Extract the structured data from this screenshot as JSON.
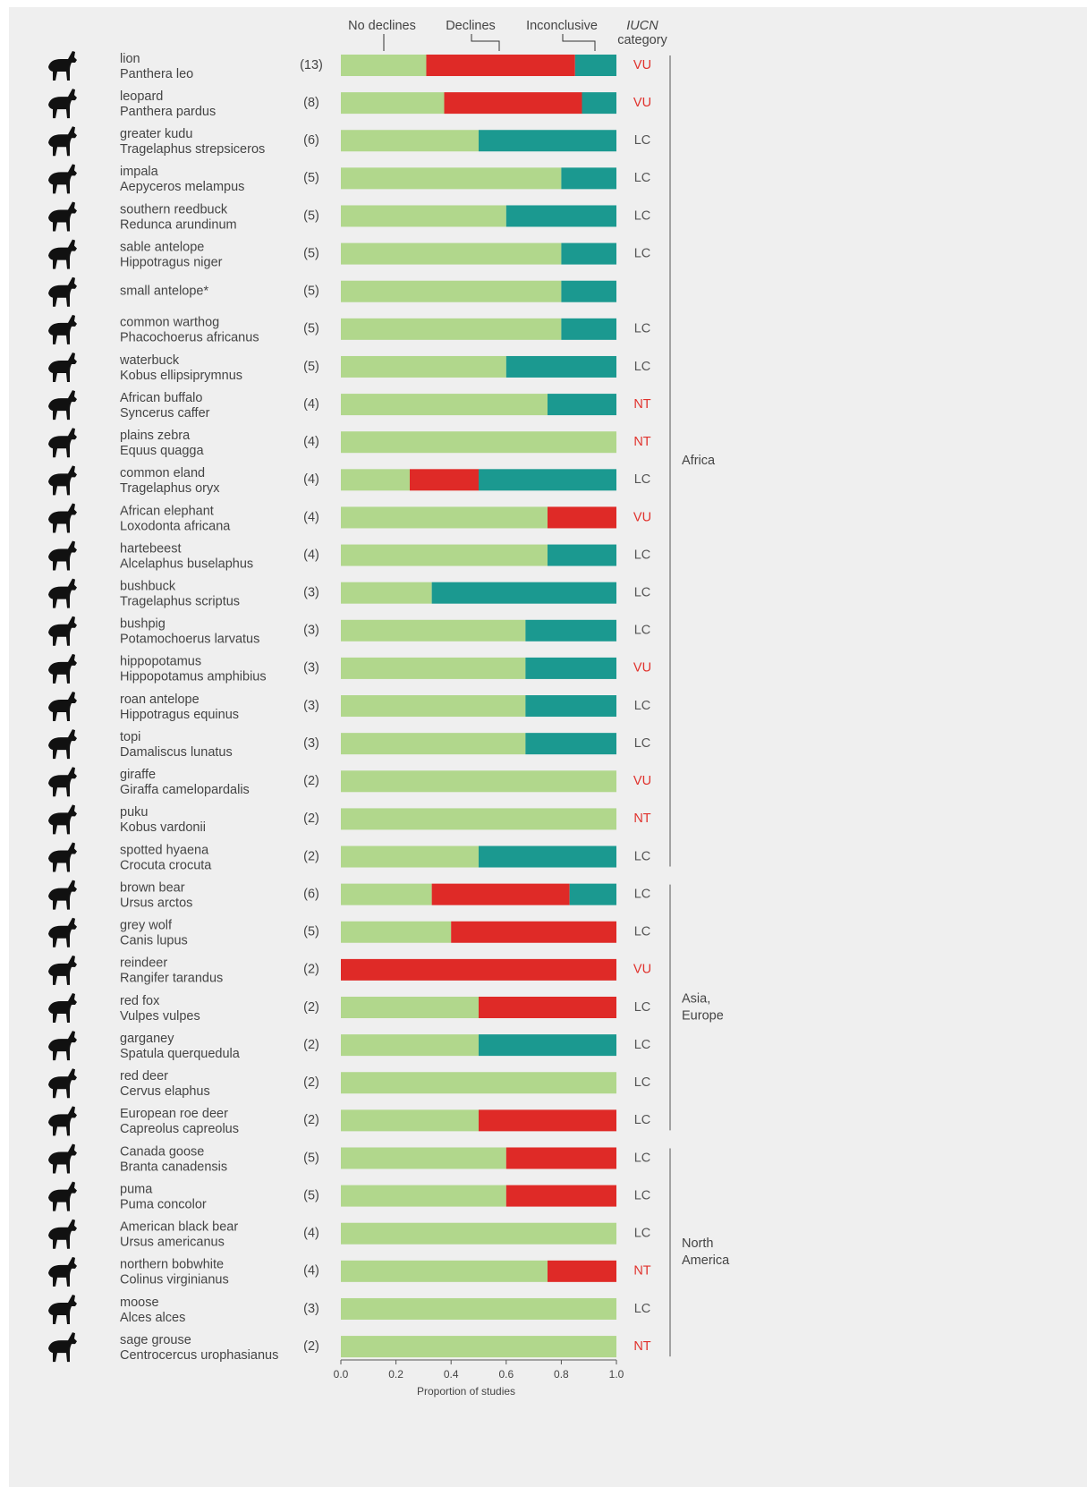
{
  "chart_data": {
    "type": "stacked-barh",
    "xlabel": "Proportion of studies",
    "xlim": [
      0,
      1
    ],
    "xticks": [
      {
        "value": 0,
        "label": "0.0"
      },
      0.2,
      0.4,
      0.6,
      0.8,
      {
        "value": 1,
        "label": "1.0"
      }
    ],
    "iucn_header": [
      "IUCN",
      "category"
    ],
    "iucn_colors": {
      "VU": "#e0312c",
      "NT": "#e0312c",
      "LC": "#555555"
    },
    "series": [
      {
        "name": "No declines",
        "color": "#b1d78c"
      },
      {
        "name": "Declines",
        "color": "#df2a27"
      },
      {
        "name": "Inconclusive",
        "color": "#1b9990"
      }
    ],
    "groups": [
      {
        "label": [
          "Africa"
        ],
        "rows": [
          {
            "common": "lion",
            "scientific": "Panthera leo",
            "studies": "(13)",
            "iucn": "VU",
            "values": [
              0.31,
              0.54,
              0.15
            ]
          },
          {
            "common": "leopard",
            "scientific": "Panthera pardus",
            "studies": "(8)",
            "iucn": "VU",
            "values": [
              0.375,
              0.5,
              0.125
            ]
          },
          {
            "common": "greater kudu",
            "scientific": "Tragelaphus strepsiceros",
            "studies": "(6)",
            "iucn": "LC",
            "values": [
              0.5,
              0,
              0.5
            ]
          },
          {
            "common": "impala",
            "scientific": "Aepyceros melampus",
            "studies": "(5)",
            "iucn": "LC",
            "values": [
              0.8,
              0,
              0.2
            ]
          },
          {
            "common": "southern reedbuck",
            "scientific": "Redunca arundinum",
            "studies": "(5)",
            "iucn": "LC",
            "values": [
              0.6,
              0,
              0.4
            ]
          },
          {
            "common": "sable antelope",
            "scientific": "Hippotragus niger",
            "studies": "(5)",
            "iucn": "LC",
            "values": [
              0.8,
              0,
              0.2
            ]
          },
          {
            "common": "small antelope*",
            "scientific": null,
            "studies": "(5)",
            "iucn": null,
            "values": [
              0.8,
              0,
              0.2
            ]
          },
          {
            "common": "common warthog",
            "scientific": "Phacochoerus africanus",
            "studies": "(5)",
            "iucn": "LC",
            "values": [
              0.8,
              0,
              0.2
            ]
          },
          {
            "common": "waterbuck",
            "scientific": "Kobus ellipsiprymnus",
            "studies": "(5)",
            "iucn": "LC",
            "values": [
              0.6,
              0,
              0.4
            ]
          },
          {
            "common": "African buffalo",
            "scientific": "Syncerus caffer",
            "studies": "(4)",
            "iucn": "NT",
            "values": [
              0.75,
              0,
              0.25
            ]
          },
          {
            "common": "plains zebra",
            "scientific": "Equus quagga",
            "studies": "(4)",
            "iucn": "NT",
            "values": [
              1,
              0,
              0
            ]
          },
          {
            "common": "common eland",
            "scientific": "Tragelaphus oryx",
            "studies": "(4)",
            "iucn": "LC",
            "values": [
              0.25,
              0.25,
              0.5
            ]
          },
          {
            "common": "African elephant",
            "scientific": "Loxodonta africana",
            "studies": "(4)",
            "iucn": "VU",
            "values": [
              0.75,
              0.25,
              0
            ]
          },
          {
            "common": "hartebeest",
            "scientific": "Alcelaphus buselaphus",
            "studies": "(4)",
            "iucn": "LC",
            "values": [
              0.75,
              0,
              0.25
            ]
          },
          {
            "common": "bushbuck",
            "scientific": "Tragelaphus scriptus",
            "studies": "(3)",
            "iucn": "LC",
            "values": [
              0.33,
              0,
              0.67
            ]
          },
          {
            "common": "bushpig",
            "scientific": "Potamochoerus larvatus",
            "studies": "(3)",
            "iucn": "LC",
            "values": [
              0.67,
              0,
              0.33
            ]
          },
          {
            "common": "hippopotamus",
            "scientific": "Hippopotamus amphibius",
            "studies": "(3)",
            "iucn": "VU",
            "values": [
              0.67,
              0,
              0.33
            ]
          },
          {
            "common": "roan antelope",
            "scientific": "Hippotragus equinus",
            "studies": "(3)",
            "iucn": "LC",
            "values": [
              0.67,
              0,
              0.33
            ]
          },
          {
            "common": "topi",
            "scientific": "Damaliscus lunatus",
            "studies": "(3)",
            "iucn": "LC",
            "values": [
              0.67,
              0,
              0.33
            ]
          },
          {
            "common": "giraffe",
            "scientific": "Giraffa camelopardalis",
            "studies": "(2)",
            "iucn": "VU",
            "values": [
              1,
              0,
              0
            ]
          },
          {
            "common": "puku",
            "scientific": "Kobus vardonii",
            "studies": "(2)",
            "iucn": "NT",
            "values": [
              1,
              0,
              0
            ]
          },
          {
            "common": "spotted hyaena",
            "scientific": "Crocuta crocuta",
            "studies": "(2)",
            "iucn": "LC",
            "values": [
              0.5,
              0,
              0.5
            ]
          }
        ]
      },
      {
        "label": [
          "Asia,",
          "Europe"
        ],
        "rows": [
          {
            "common": "brown bear",
            "scientific": "Ursus arctos",
            "studies": "(6)",
            "iucn": "LC",
            "values": [
              0.33,
              0.5,
              0.17
            ]
          },
          {
            "common": "grey wolf",
            "scientific": "Canis lupus",
            "studies": "(5)",
            "iucn": "LC",
            "values": [
              0.4,
              0.6,
              0
            ]
          },
          {
            "common": "reindeer",
            "scientific": "Rangifer tarandus",
            "studies": "(2)",
            "iucn": "VU",
            "values": [
              0,
              1,
              0
            ]
          },
          {
            "common": "red fox",
            "scientific": "Vulpes vulpes",
            "studies": "(2)",
            "iucn": "LC",
            "values": [
              0.5,
              0.5,
              0
            ]
          },
          {
            "common": "garganey",
            "scientific": "Spatula querquedula",
            "studies": "(2)",
            "iucn": "LC",
            "values": [
              0.5,
              0,
              0.5
            ]
          },
          {
            "common": "red deer",
            "scientific": "Cervus elaphus",
            "studies": "(2)",
            "iucn": "LC",
            "values": [
              1,
              0,
              0
            ]
          },
          {
            "common": "European roe deer",
            "scientific": "Capreolus capreolus",
            "studies": "(2)",
            "iucn": "LC",
            "values": [
              0.5,
              0.5,
              0
            ]
          }
        ]
      },
      {
        "label": [
          "North",
          "America"
        ],
        "rows": [
          {
            "common": "Canada goose",
            "scientific": "Branta canadensis",
            "studies": "(5)",
            "iucn": "LC",
            "values": [
              0.6,
              0.4,
              0
            ]
          },
          {
            "common": "puma",
            "scientific": "Puma concolor",
            "studies": "(5)",
            "iucn": "LC",
            "values": [
              0.6,
              0.4,
              0
            ]
          },
          {
            "common": "American black bear",
            "scientific": "Ursus americanus",
            "studies": "(4)",
            "iucn": "LC",
            "values": [
              1,
              0,
              0
            ]
          },
          {
            "common": "northern bobwhite",
            "scientific": "Colinus virginianus",
            "studies": "(4)",
            "iucn": "NT",
            "values": [
              0.75,
              0.25,
              0
            ]
          },
          {
            "common": "moose",
            "scientific": "Alces alces",
            "studies": "(3)",
            "iucn": "LC",
            "values": [
              1,
              0,
              0
            ]
          },
          {
            "common": "sage grouse",
            "scientific": "Centrocercus urophasianus",
            "studies": "(2)",
            "iucn": "NT",
            "values": [
              1,
              0,
              0
            ]
          }
        ]
      }
    ]
  }
}
